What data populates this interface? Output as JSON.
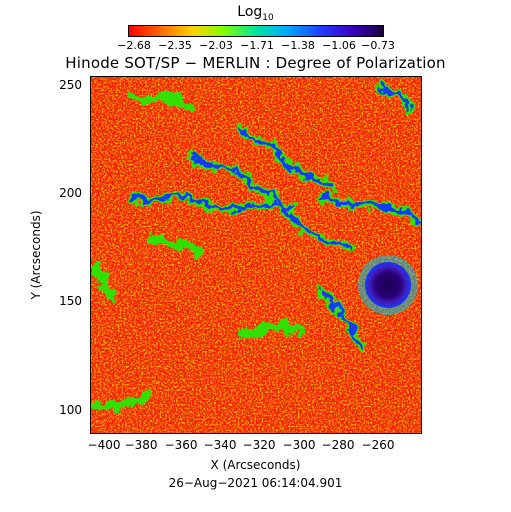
{
  "colorbar": {
    "title": "Log",
    "title_sub": "10",
    "ticks": [
      "−2.68",
      "−2.35",
      "−2.03",
      "−1.71",
      "−1.38",
      "−1.06",
      "−0.73"
    ],
    "colors": [
      "#ff0000",
      "#ff6a00",
      "#ffd200",
      "#7fff00",
      "#00e5a0",
      "#00a8ff",
      "#2040ff",
      "#3a00c8",
      "#1a0040"
    ]
  },
  "title": "Hinode SOT/SP − MERLIN : Degree of Polarization",
  "x_axis": {
    "label": "X (Arcseconds)",
    "ticks": [
      "−400",
      "−380",
      "−360",
      "−340",
      "−320",
      "−300",
      "−280",
      "−260"
    ]
  },
  "y_axis": {
    "label": "Y (Arcseconds)",
    "ticks": [
      "250",
      "200",
      "150",
      "100"
    ]
  },
  "date": "26−Aug−2021 06:14:04.901",
  "map_colors": {
    "background": "#f02000",
    "orange": "#ff7a00",
    "yellow": "#ffd400",
    "green": "#30e000",
    "cyan": "#00c8e0",
    "blue": "#1438ff",
    "umbra": "#2a0078",
    "penumbra": "#4020c0"
  }
}
